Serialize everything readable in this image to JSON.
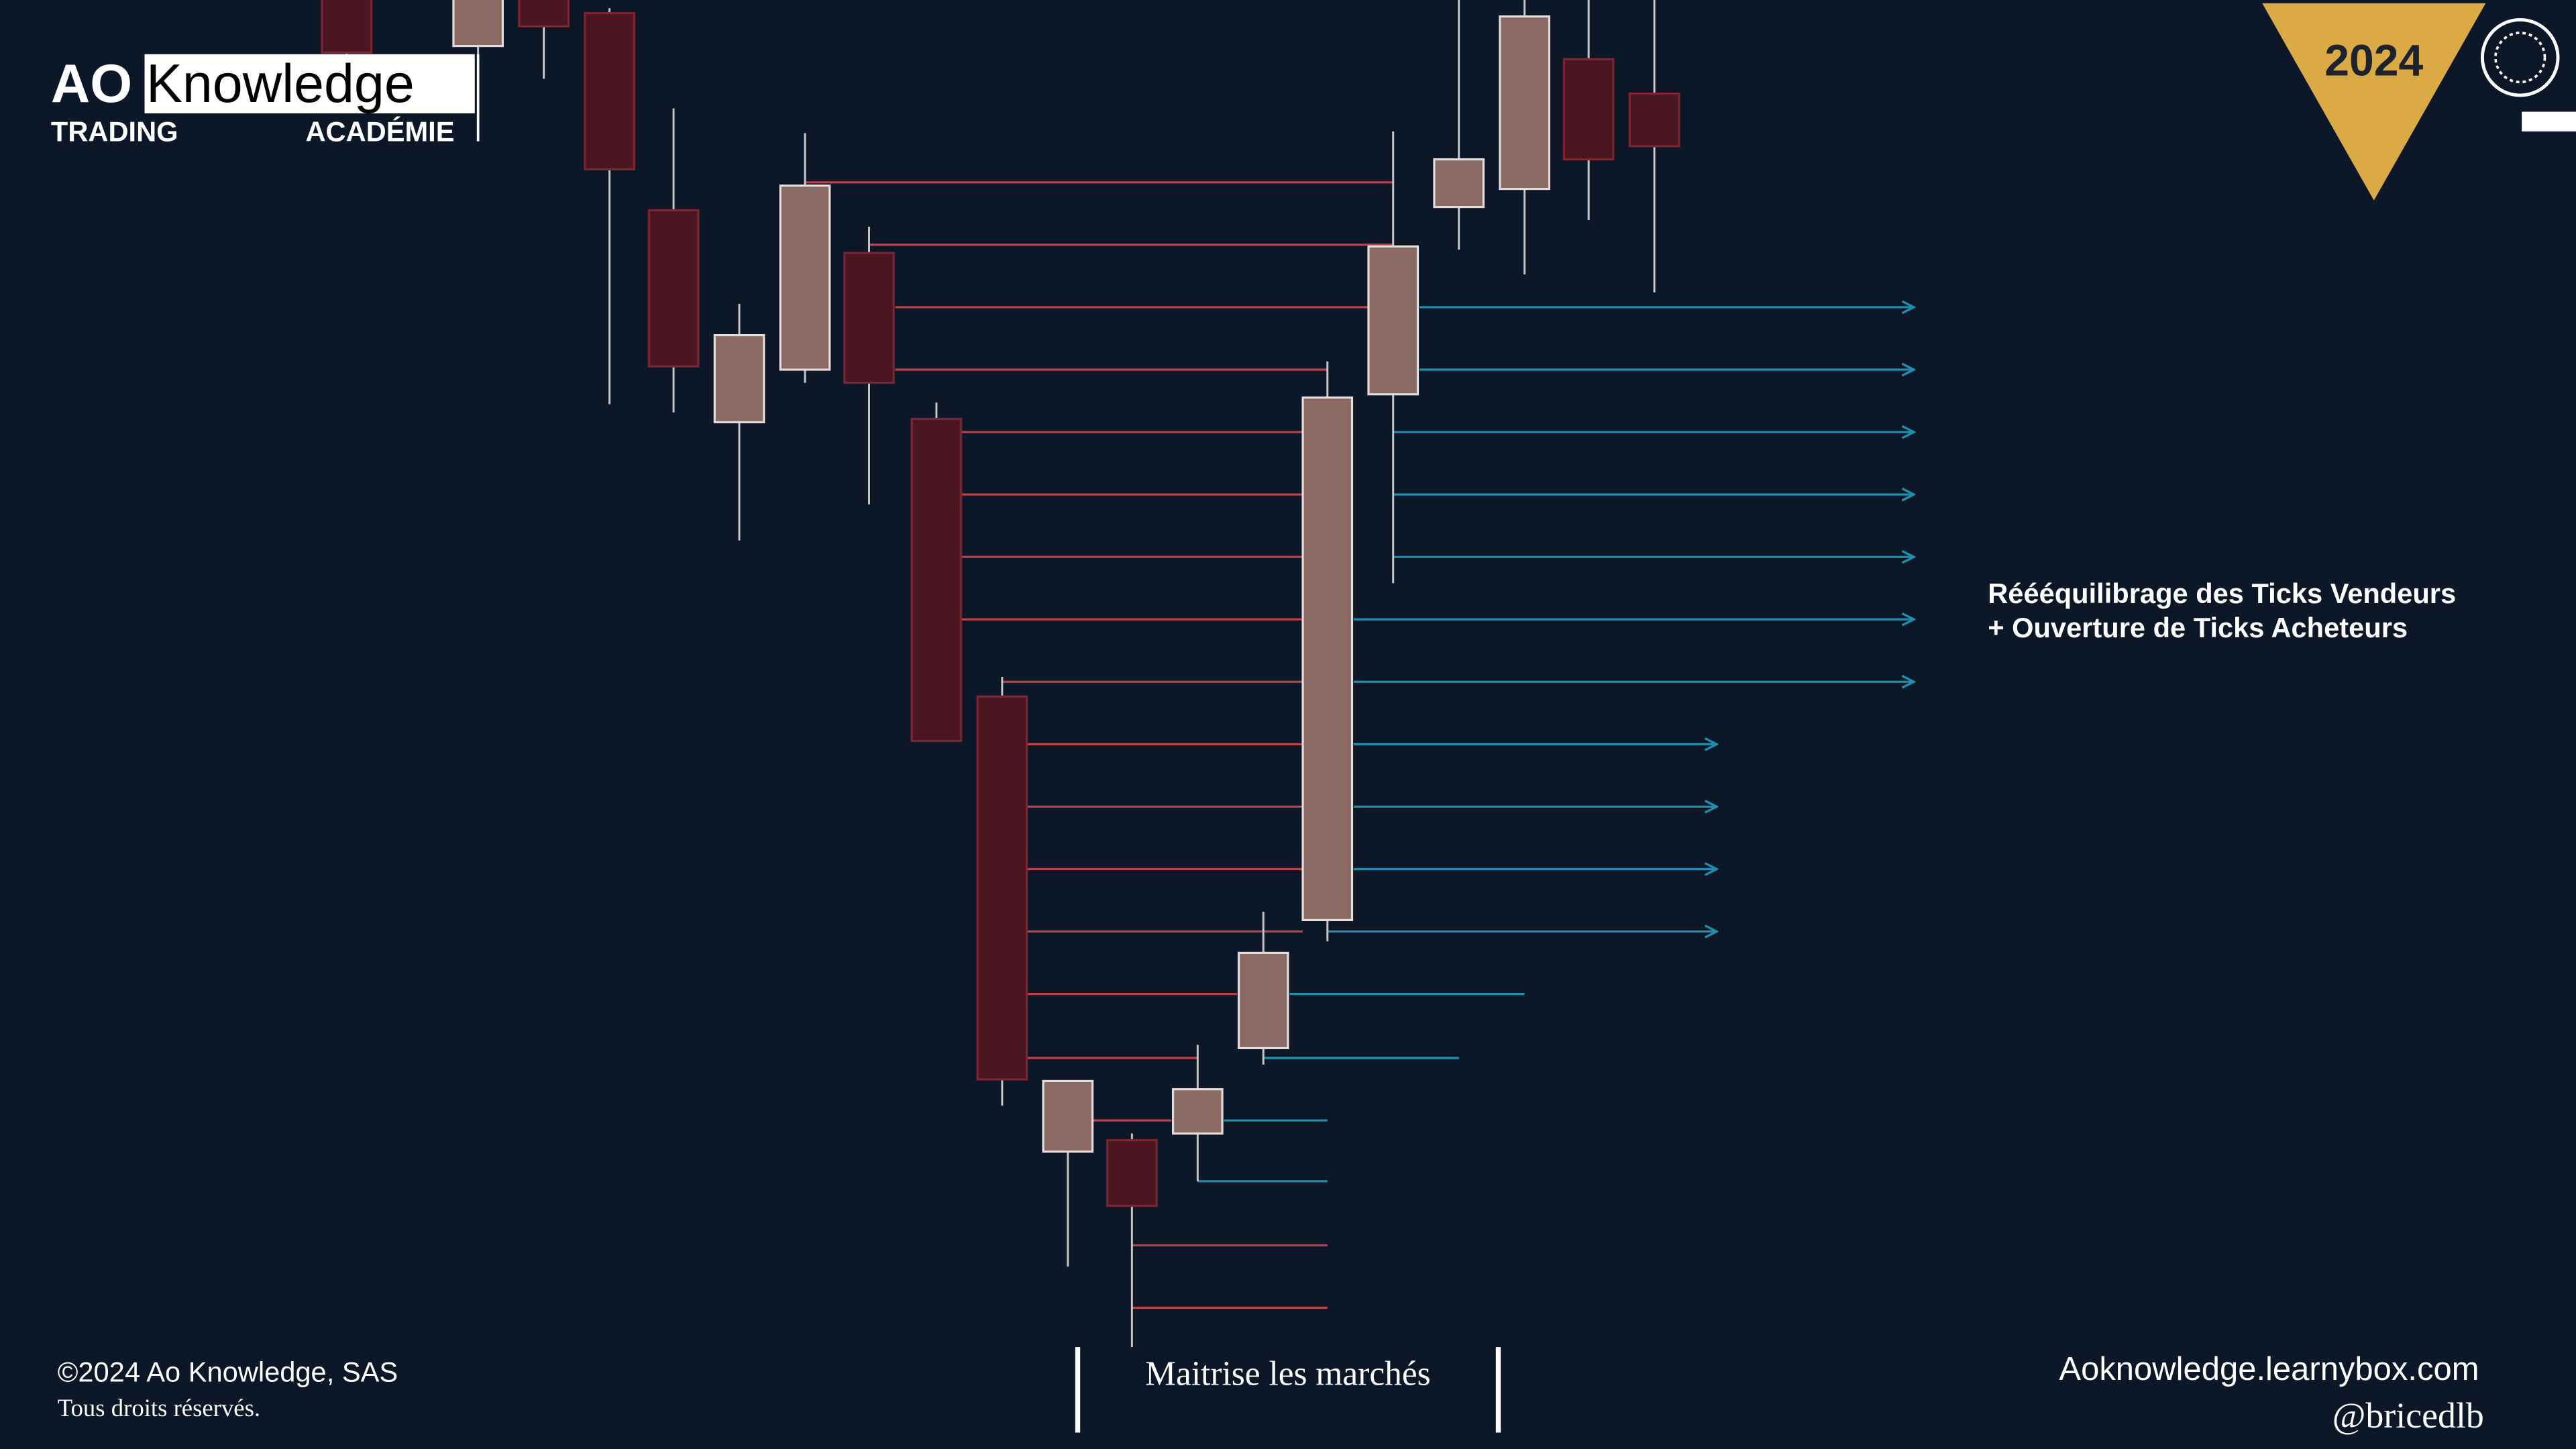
{
  "logo": {
    "ao": "AO",
    "knowledge": "Knowledge",
    "trading": "TRADING",
    "academie": "ACADÉMIE"
  },
  "badge": {
    "year": "2024"
  },
  "annotation": {
    "line1": "Réééquilibrage des Ticks Vendeurs",
    "line2": "+ Ouverture de Ticks Acheteurs"
  },
  "footer": {
    "copyright": "©2024 Ao Knowledge, SAS",
    "rights": "Tous droits réservés.",
    "tagline": "Maitrise les marchés",
    "website": "Aoknowledge.learnybox.com",
    "handle": "@bricedlb"
  }
}
